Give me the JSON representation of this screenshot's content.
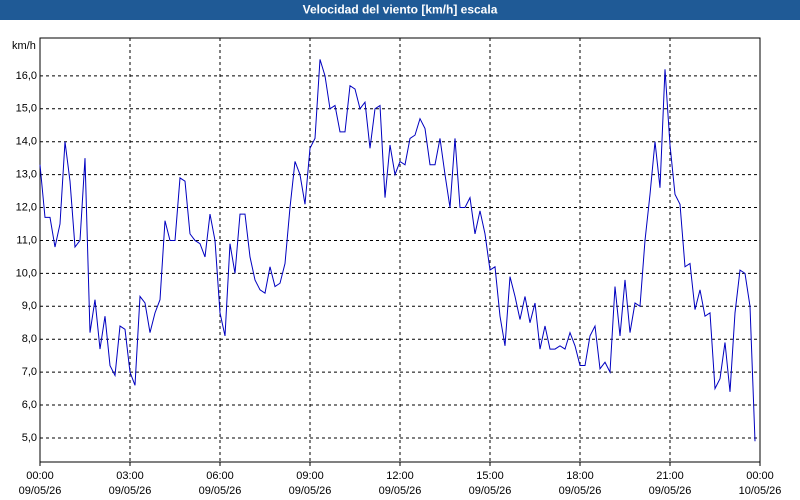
{
  "chart_data": {
    "type": "line",
    "title": "Velocidad del viento [km/h] escala",
    "y_label": "km/h",
    "x": [
      0,
      10,
      20,
      30,
      40,
      50,
      60,
      70,
      80,
      90,
      100,
      110,
      120,
      130,
      140,
      150,
      160,
      170,
      180,
      190,
      200,
      210,
      220,
      230,
      240,
      250,
      260,
      270,
      280,
      290,
      300,
      310,
      320,
      330,
      340,
      350,
      360,
      370,
      380,
      390,
      400,
      410,
      420,
      430,
      440,
      450,
      460,
      470,
      480,
      490,
      500,
      510,
      520,
      530,
      540,
      550,
      560,
      570,
      580,
      590,
      600,
      610,
      620,
      630,
      640,
      650,
      660,
      670,
      680,
      690,
      700,
      710,
      720,
      730,
      740,
      750,
      760,
      770,
      780,
      790,
      800,
      810,
      820,
      830,
      840,
      850,
      860,
      870,
      880,
      890,
      900,
      910,
      920,
      930,
      940,
      950,
      960,
      970,
      980,
      990,
      1000,
      1010,
      1020,
      1030,
      1040,
      1050,
      1060,
      1070,
      1080,
      1090,
      1100,
      1110,
      1120,
      1130,
      1140,
      1150,
      1160,
      1170,
      1180,
      1190,
      1200,
      1210,
      1220,
      1230,
      1240,
      1250,
      1260,
      1270,
      1280,
      1290,
      1300,
      1310,
      1320,
      1330,
      1340,
      1350,
      1360,
      1370,
      1380,
      1390,
      1400,
      1410,
      1420,
      1430
    ],
    "series": [
      {
        "name": "Velocidad del viento",
        "color": "#0000c0",
        "values": [
          13.3,
          11.7,
          11.7,
          10.8,
          11.5,
          14.0,
          12.8,
          10.8,
          11.0,
          13.5,
          8.2,
          9.2,
          7.7,
          8.7,
          7.2,
          6.9,
          8.4,
          8.3,
          7.0,
          6.6,
          9.3,
          9.1,
          8.2,
          8.8,
          9.2,
          11.6,
          11.0,
          11.0,
          12.9,
          12.8,
          11.2,
          11.0,
          10.9,
          10.5,
          11.8,
          11.0,
          8.8,
          8.1,
          10.9,
          10.0,
          11.8,
          11.8,
          10.5,
          9.8,
          9.5,
          9.4,
          10.2,
          9.6,
          9.7,
          10.3,
          12.0,
          13.4,
          13.0,
          12.1,
          13.8,
          14.1,
          16.5,
          16.0,
          15.0,
          15.1,
          14.3,
          14.3,
          15.7,
          15.6,
          15.0,
          15.2,
          13.8,
          15.0,
          15.1,
          12.3,
          13.9,
          13.0,
          13.4,
          13.3,
          14.1,
          14.2,
          14.7,
          14.4,
          13.3,
          13.3,
          14.1,
          13.0,
          12.0,
          14.1,
          12.0,
          12.0,
          12.3,
          11.2,
          11.9,
          11.2,
          10.1,
          10.2,
          8.7,
          7.8,
          9.9,
          9.3,
          8.6,
          9.3,
          8.5,
          9.1,
          7.7,
          8.4,
          7.7,
          7.7,
          7.8,
          7.7,
          8.2,
          7.8,
          7.2,
          7.2,
          8.1,
          8.4,
          7.1,
          7.3,
          7.0,
          9.6,
          8.1,
          9.8,
          8.2,
          9.1,
          9.0,
          11.0,
          12.4,
          14.0,
          12.6,
          16.2,
          13.9,
          12.4,
          12.1,
          10.2,
          10.3,
          8.9,
          9.5,
          8.7,
          8.8,
          6.5,
          6.8,
          7.9,
          6.4,
          8.8,
          10.1,
          10.0,
          9.0,
          4.9
        ]
      }
    ],
    "xlim": [
      0,
      1440
    ],
    "xticks": [
      {
        "value": 0,
        "label": "00:00",
        "date": "09/05/26"
      },
      {
        "value": 180,
        "label": "03:00",
        "date": "09/05/26"
      },
      {
        "value": 360,
        "label": "06:00",
        "date": "09/05/26"
      },
      {
        "value": 540,
        "label": "09:00",
        "date": "09/05/26"
      },
      {
        "value": 720,
        "label": "12:00",
        "date": "09/05/26"
      },
      {
        "value": 900,
        "label": "15:00",
        "date": "09/05/26"
      },
      {
        "value": 1080,
        "label": "18:00",
        "date": "09/05/26"
      },
      {
        "value": 1260,
        "label": "21:00",
        "date": "09/05/26"
      },
      {
        "value": 1440,
        "label": "00:00",
        "date": "10/05/26"
      }
    ],
    "ylim": [
      4.27,
      17.15
    ],
    "yticks": [
      {
        "value": 5,
        "label": "5,0"
      },
      {
        "value": 6,
        "label": "6,0"
      },
      {
        "value": 7,
        "label": "7,0"
      },
      {
        "value": 8,
        "label": "8,0"
      },
      {
        "value": 9,
        "label": "9,0"
      },
      {
        "value": 10,
        "label": "10,0"
      },
      {
        "value": 11,
        "label": "11,0"
      },
      {
        "value": 12,
        "label": "12,0"
      },
      {
        "value": 13,
        "label": "13,0"
      },
      {
        "value": 14,
        "label": "14,0"
      },
      {
        "value": 15,
        "label": "15,0"
      },
      {
        "value": 16,
        "label": "16,0"
      }
    ],
    "grid": true
  }
}
